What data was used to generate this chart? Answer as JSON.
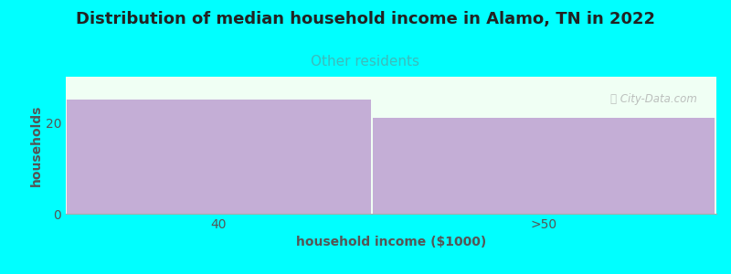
{
  "title": "Distribution of median household income in Alamo, TN in 2022",
  "subtitle": "Other residents",
  "categories": [
    "40",
    ">50"
  ],
  "values": [
    25,
    21
  ],
  "bar_color": "#c4aed6",
  "background_color": "#00ffff",
  "plot_bg_color": "#f0fff4",
  "xlabel": "household income ($1000)",
  "ylabel": "households",
  "ylim": [
    0,
    30
  ],
  "title_fontsize": 13,
  "subtitle_fontsize": 11,
  "subtitle_color": "#3bbcbc",
  "axis_label_color": "#555555",
  "tick_color": "#555555",
  "watermark": "ⓘ City-Data.com",
  "title_color": "#222222"
}
